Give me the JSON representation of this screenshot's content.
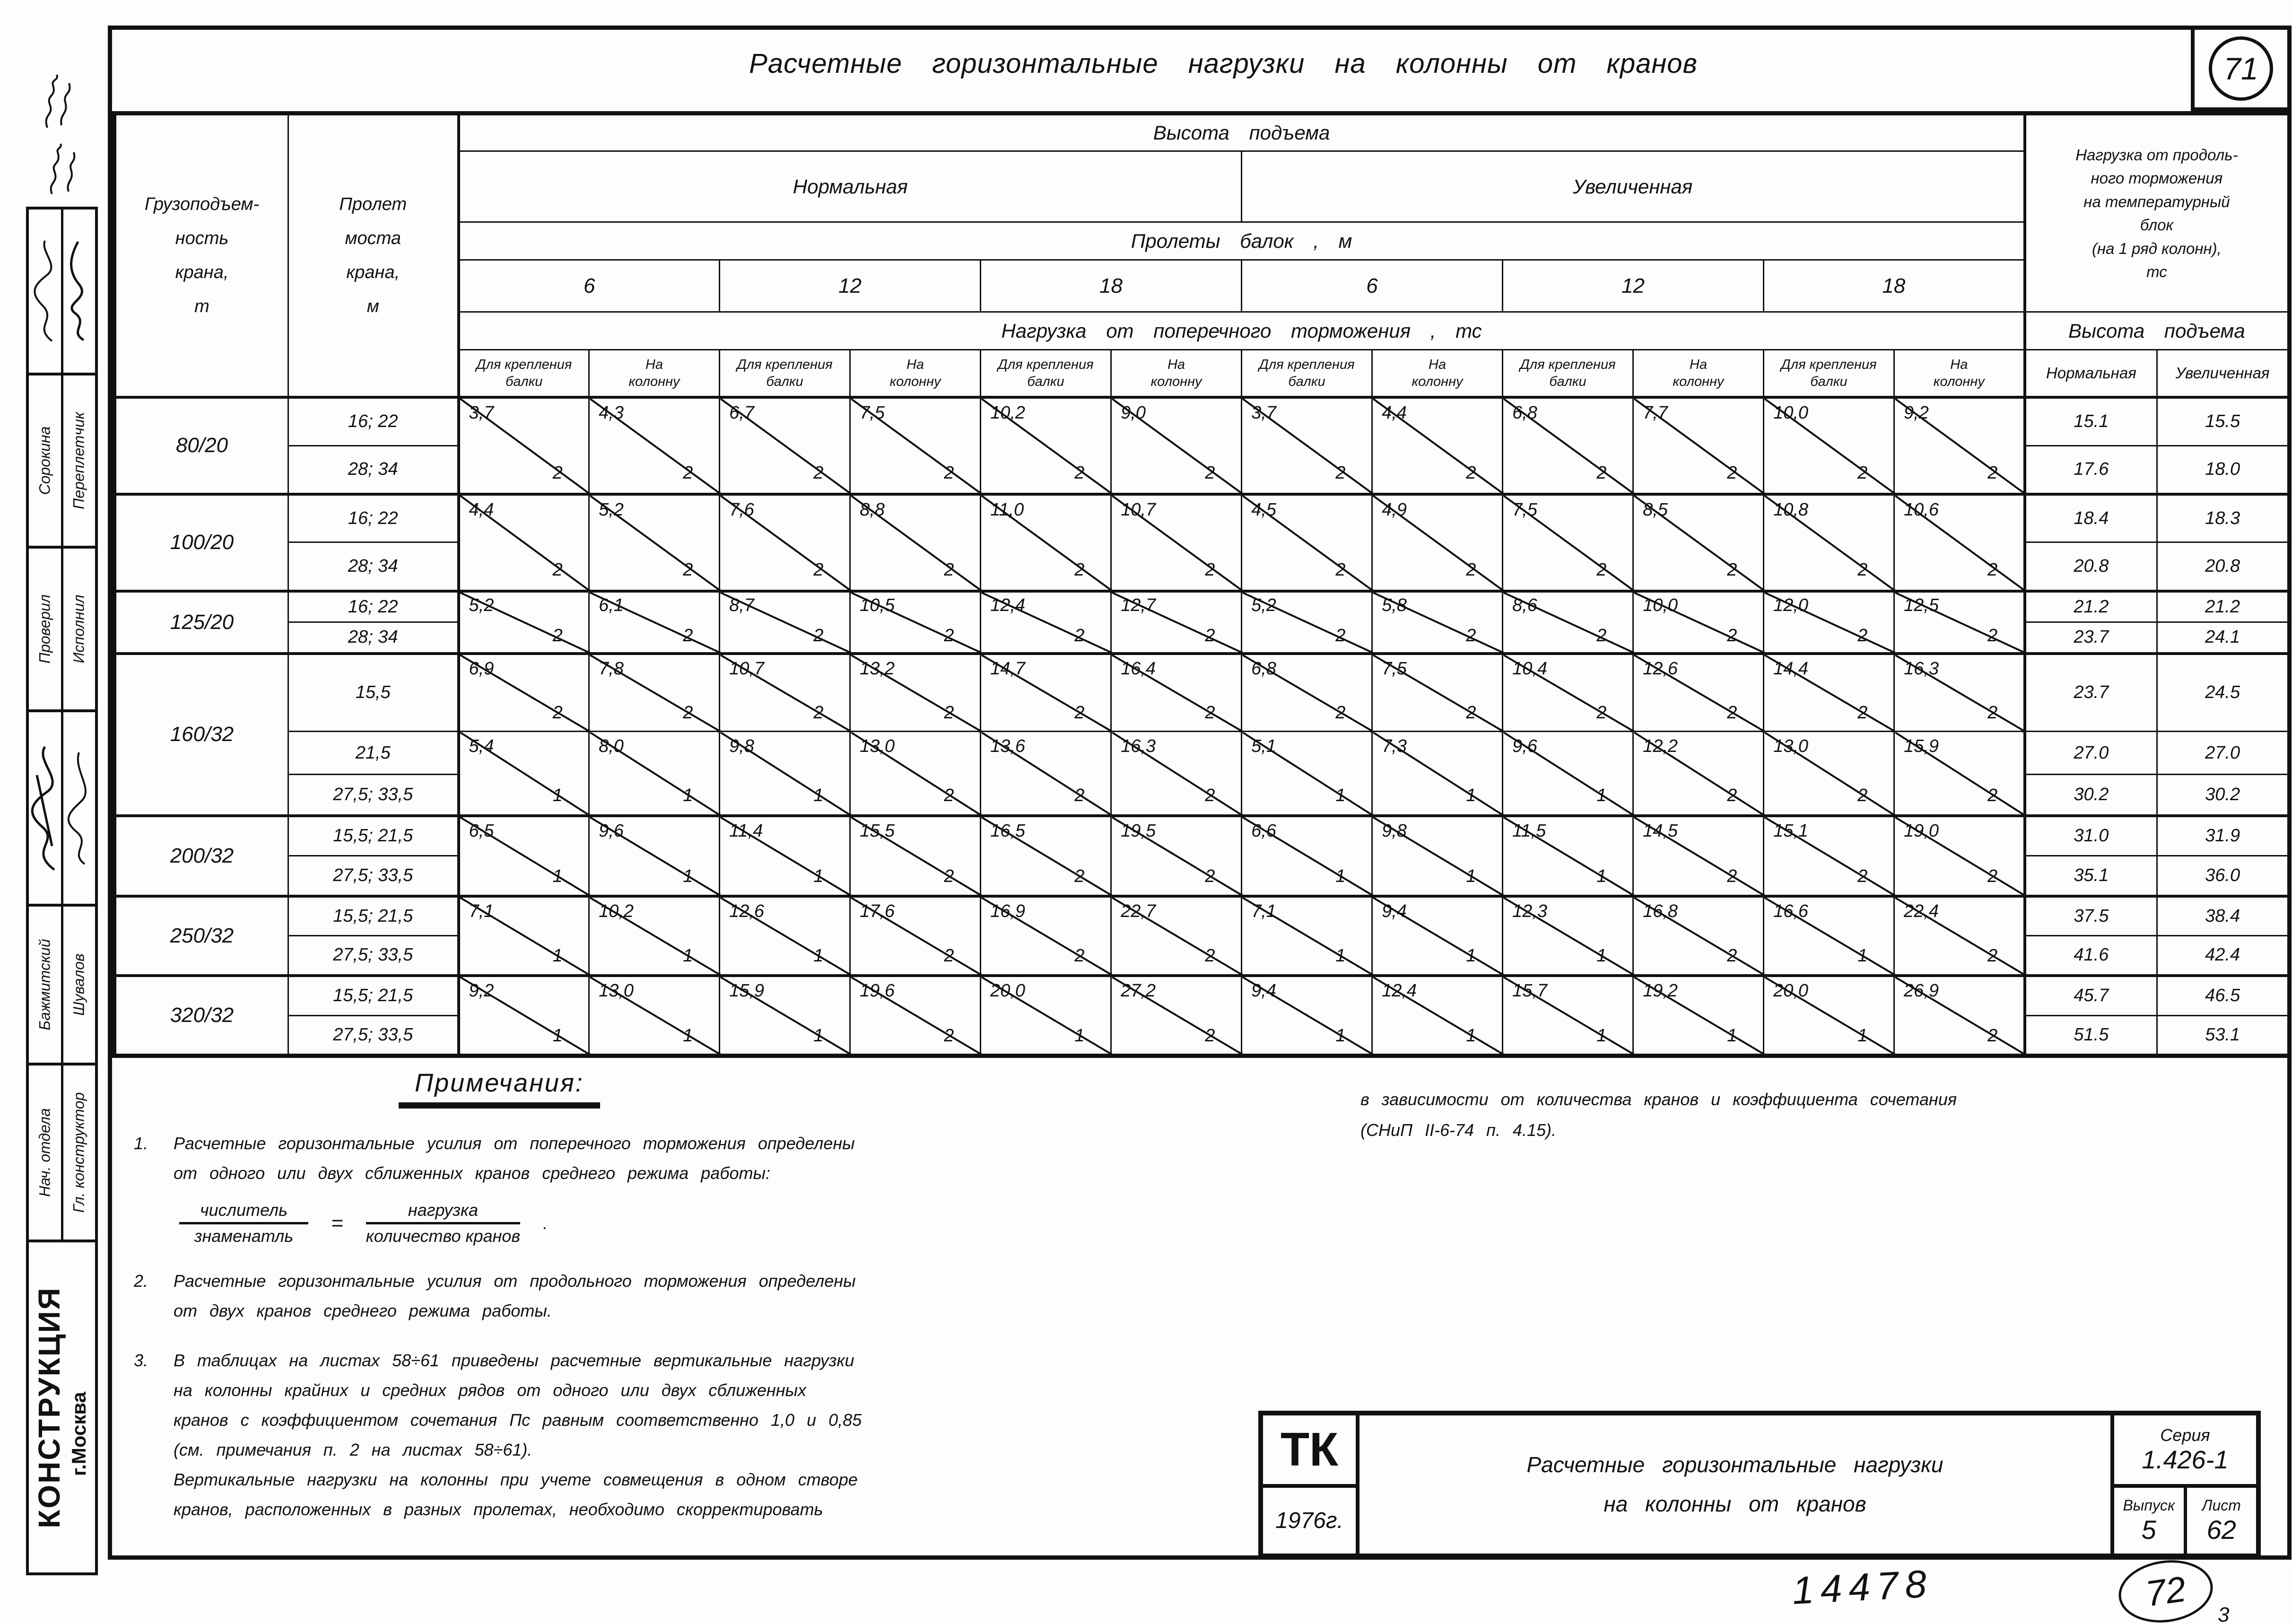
{
  "page": {
    "sheet_number": "71",
    "title": "Расчетные горизонтальные нагрузки на колонны от кранов"
  },
  "table": {
    "col_capacity": "Грузоподъем-\nность\nкрана,\nт",
    "col_span": "Пролет\nмоста\nкрана,\nм",
    "lift_height": "Высота подъема",
    "normal": "Нормальная",
    "increased": "Увеличенная",
    "beam_spans": "Пролеты   балок , м",
    "span_values": [
      "6",
      "12",
      "18",
      "6",
      "12",
      "18"
    ],
    "transverse": "Нагрузка   от   поперечного   торможения , тс",
    "beam_fix": "Для крепления\nбалки",
    "on_column": "На\nколонну",
    "longitudinal": "Нагрузка от продоль-\nного торможения\nна температурный\nблок\n(на 1 ряд колонн),\nтс",
    "groups": [
      {
        "capacity": "80/20",
        "blocks": [
          {
            "spans": [
              "16; 22",
              "28; 34"
            ],
            "n": [
              "3,7",
              "4,3",
              "6,7",
              "7,5",
              "10,2",
              "9,0",
              "3,7",
              "4,4",
              "6,8",
              "7,7",
              "10,0",
              "9,2"
            ],
            "d": [
              "2",
              "2",
              "2",
              "2",
              "2",
              "2",
              "2",
              "2",
              "2",
              "2",
              "2",
              "2"
            ],
            "long": [
              [
                "15.1",
                "15.5"
              ],
              [
                "17.6",
                "18.0"
              ]
            ]
          }
        ]
      },
      {
        "capacity": "100/20",
        "blocks": [
          {
            "spans": [
              "16; 22",
              "28; 34"
            ],
            "n": [
              "4,4",
              "5,2",
              "7,6",
              "8,8",
              "11,0",
              "10,7",
              "4,5",
              "4,9",
              "7,5",
              "8,5",
              "10,8",
              "10,6"
            ],
            "d": [
              "2",
              "2",
              "2",
              "2",
              "2",
              "2",
              "2",
              "2",
              "2",
              "2",
              "2",
              "2"
            ],
            "long": [
              [
                "18.4",
                "18.3"
              ],
              [
                "20.8",
                "20.8"
              ]
            ]
          }
        ]
      },
      {
        "capacity": "125/20",
        "blocks": [
          {
            "spans": [
              "16; 22",
              "28; 34"
            ],
            "n": [
              "5,2",
              "6,1",
              "8,7",
              "10,5",
              "12,4",
              "12,7",
              "5,2",
              "5,8",
              "8,6",
              "10,0",
              "12,0",
              "12,5"
            ],
            "d": [
              "2",
              "2",
              "2",
              "2",
              "2",
              "2",
              "2",
              "2",
              "2",
              "2",
              "2",
              "2"
            ],
            "long": [
              [
                "21.2",
                "21.2"
              ],
              [
                "23.7",
                "24.1"
              ]
            ]
          }
        ]
      },
      {
        "capacity": "160/32",
        "blocks": [
          {
            "spans": [
              "15,5"
            ],
            "n": [
              "6,9",
              "7,8",
              "10,7",
              "13,2",
              "14,7",
              "16,4",
              "6,8",
              "7,5",
              "10,4",
              "12,6",
              "14,4",
              "16,3"
            ],
            "d": [
              "2",
              "2",
              "2",
              "2",
              "2",
              "2",
              "2",
              "2",
              "2",
              "2",
              "2",
              "2"
            ],
            "long": [
              [
                "23.7",
                "24.5"
              ]
            ]
          },
          {
            "spans": [
              "21,5",
              "27,5; 33,5"
            ],
            "n": [
              "5,4",
              "8,0",
              "9,8",
              "13,0",
              "13,6",
              "16,3",
              "5,1",
              "7,3",
              "9,6",
              "12,2",
              "13,0",
              "15,9"
            ],
            "d": [
              "1",
              "1",
              "1",
              "2",
              "2",
              "2",
              "1",
              "1",
              "1",
              "2",
              "2",
              "2"
            ],
            "long": [
              [
                "27.0",
                "27.0"
              ],
              [
                "30.2",
                "30.2"
              ]
            ]
          }
        ]
      },
      {
        "capacity": "200/32",
        "blocks": [
          {
            "spans": [
              "15,5; 21,5",
              "27,5; 33,5"
            ],
            "n": [
              "6,5",
              "9,6",
              "11,4",
              "15,5",
              "16,5",
              "19,5",
              "6,6",
              "9,8",
              "11,5",
              "14,5",
              "15,1",
              "19,0"
            ],
            "d": [
              "1",
              "1",
              "1",
              "2",
              "2",
              "2",
              "1",
              "1",
              "1",
              "2",
              "2",
              "2"
            ],
            "long": [
              [
                "31.0",
                "31.9"
              ],
              [
                "35.1",
                "36.0"
              ]
            ]
          }
        ]
      },
      {
        "capacity": "250/32",
        "blocks": [
          {
            "spans": [
              "15,5; 21,5",
              "27,5; 33,5"
            ],
            "n": [
              "7,1",
              "10,2",
              "12,6",
              "17,6",
              "16,9",
              "22,7",
              "7,1",
              "9,4",
              "12,3",
              "16,8",
              "16,6",
              "22,4"
            ],
            "d": [
              "1",
              "1",
              "1",
              "2",
              "2",
              "2",
              "1",
              "1",
              "1",
              "2",
              "1",
              "2"
            ],
            "long": [
              [
                "37.5",
                "38.4"
              ],
              [
                "41.6",
                "42.4"
              ]
            ]
          }
        ]
      },
      {
        "capacity": "320/32",
        "blocks": [
          {
            "spans": [
              "15,5; 21,5",
              "27,5; 33,5"
            ],
            "n": [
              "9,2",
              "13,0",
              "15,9",
              "19,6",
              "20,0",
              "27,2",
              "9,4",
              "12,4",
              "15,7",
              "19,2",
              "20,0",
              "26,9"
            ],
            "d": [
              "1",
              "1",
              "1",
              "2",
              "1",
              "2",
              "1",
              "1",
              "1",
              "1",
              "1",
              "2"
            ],
            "long": [
              [
                "45.7",
                "46.5"
              ],
              [
                "51.5",
                "53.1"
              ]
            ]
          }
        ]
      }
    ]
  },
  "notes": {
    "heading": "Примечания:",
    "n1_num": "1.",
    "n1_text": "Расчетные  горизонтальные  усилия  от поперечного  торможения  определены\nот одного  или  двух  сближенных  кранов  среднего  режима  работы:",
    "frac1_top": "числитель",
    "frac1_bot": "знаменатль",
    "equals": "=",
    "frac2_top": "нагрузка",
    "frac2_bot": "количество кранов",
    "frac_dot": ".",
    "n2_num": "2.",
    "n2_text": "Расчетные  горизонтальные  усилия  от  продольного  торможения  определены\nот  двух  кранов  среднего  режима  работы.",
    "n3_num": "3.",
    "n3_text": "В таблицах  на листах  58÷61  приведены  расчетные  вертикальные  нагрузки\nна колонны  крайних  и средних  рядов  от одного  или  двух  сближенных\nкранов  с коэффициентом  сочетания  Пс  равным  соответственно  1,0 и 0,85\n(см. примечания  п. 2  на листах  58÷61).\nВертикальные  нагрузки  на колонны  при  учете  совмещения  в одном  створе\nкранов, расположенных  в разных  пролетах, необходимо  скорректировать",
    "continuation": "в  зависимости  от  количества  кранов  и  коэффициента  сочетания\n(СНиП II-6-74 п. 4.15)."
  },
  "title_block": {
    "org": "ТК",
    "year": "1976г.",
    "title": "Расчетные  горизонтальные  нагрузки\nна  колонны  от кранов",
    "series_label": "Серия",
    "series": "1.426-1",
    "issue_label": "Выпуск",
    "issue": "5",
    "sheet_label": "Лист",
    "sheet": "62"
  },
  "stamp": {
    "checked_name": "Сорокина",
    "made_name": "Переплетчик",
    "checked_label": "Проверил",
    "made_label": "Исполнил",
    "head_name": "Бажмитский",
    "chief_name": "Шувалов",
    "head_label": "Нач. отдела",
    "chief_label": "Гл. конструктор",
    "org": "КОНСТРУКЦИЯ",
    "city": "г.Москва"
  },
  "handwriting": {
    "number": "14478",
    "page_mark": "72",
    "extra": "3"
  }
}
